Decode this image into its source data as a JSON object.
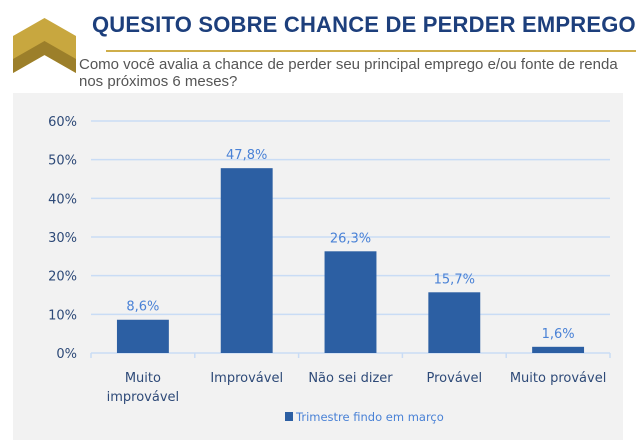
{
  "header": {
    "title": "QUESITO SOBRE CHANCE DE PERDER EMPREGO",
    "subtitle_lines": [
      "Como você avalia a chance de perder seu principal emprego e/ou fonte de renda",
      "nos próximos 6 meses?"
    ]
  },
  "colors": {
    "title": "#1d3f7c",
    "accent_gold": "#cfae4a",
    "bar": "#2c5fa3",
    "data_label": "#4a82d6",
    "gridline": "#c9dcf5",
    "panel_bg": "#f2f2f2"
  },
  "chart_data": {
    "type": "bar",
    "title": "",
    "xlabel": "",
    "ylabel": "",
    "categories": [
      [
        "Muito",
        "improvável"
      ],
      [
        "Improvável"
      ],
      [
        "Não sei dizer"
      ],
      [
        "Provável"
      ],
      [
        "Muito provável"
      ]
    ],
    "series": [
      {
        "name": "Trimestre findo em março",
        "values": [
          8.6,
          47.8,
          26.3,
          15.7,
          1.6
        ],
        "labels": [
          "8,6%",
          "47,8%",
          "26,3%",
          "15,7%",
          "1,6%"
        ]
      }
    ],
    "ylim": [
      0,
      60
    ],
    "yticks": [
      0,
      10,
      20,
      30,
      40,
      50,
      60
    ],
    "ytick_labels": [
      "0%",
      "10%",
      "20%",
      "30%",
      "40%",
      "50%",
      "60%"
    ],
    "grid": true,
    "legend_position": "bottom-center"
  }
}
